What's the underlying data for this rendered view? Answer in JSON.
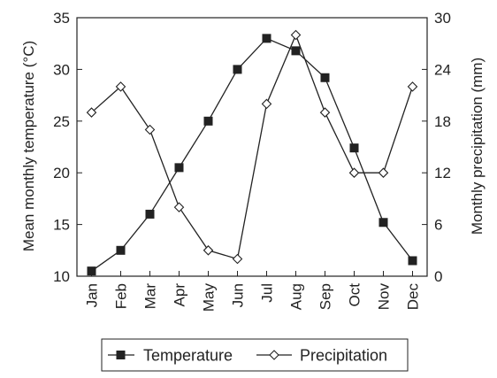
{
  "chart_data": {
    "type": "line",
    "categories": [
      "Jan",
      "Feb",
      "Mar",
      "Apr",
      "May",
      "Jun",
      "Jul",
      "Aug",
      "Sep",
      "Oct",
      "Nov",
      "Dec"
    ],
    "series": [
      {
        "name": "Temperature",
        "axis": "left",
        "marker": "filled-square",
        "values": [
          10.5,
          12.5,
          16.0,
          20.5,
          25.0,
          30.0,
          33.0,
          31.8,
          29.2,
          22.4,
          15.2,
          11.5
        ]
      },
      {
        "name": "Precipitation",
        "axis": "right",
        "marker": "open-diamond",
        "values": [
          19,
          22,
          17,
          8,
          3,
          2,
          20,
          28,
          19,
          12,
          12,
          22
        ]
      }
    ],
    "ylabel_left": "Mean monthly temperature (°C)",
    "ylabel_right": "Monthly precipitation (mm)",
    "ylim_left": [
      10,
      35
    ],
    "ylim_right": [
      0,
      30
    ],
    "yticks_left": [
      10,
      15,
      20,
      25,
      30,
      35
    ],
    "yticks_right": [
      0,
      6,
      12,
      18,
      24,
      30
    ],
    "grid": false,
    "legend": {
      "placement": "bottom",
      "entries": [
        "Temperature",
        "Precipitation"
      ]
    },
    "colors": {
      "line": "#222222",
      "axis": "#222222"
    }
  }
}
